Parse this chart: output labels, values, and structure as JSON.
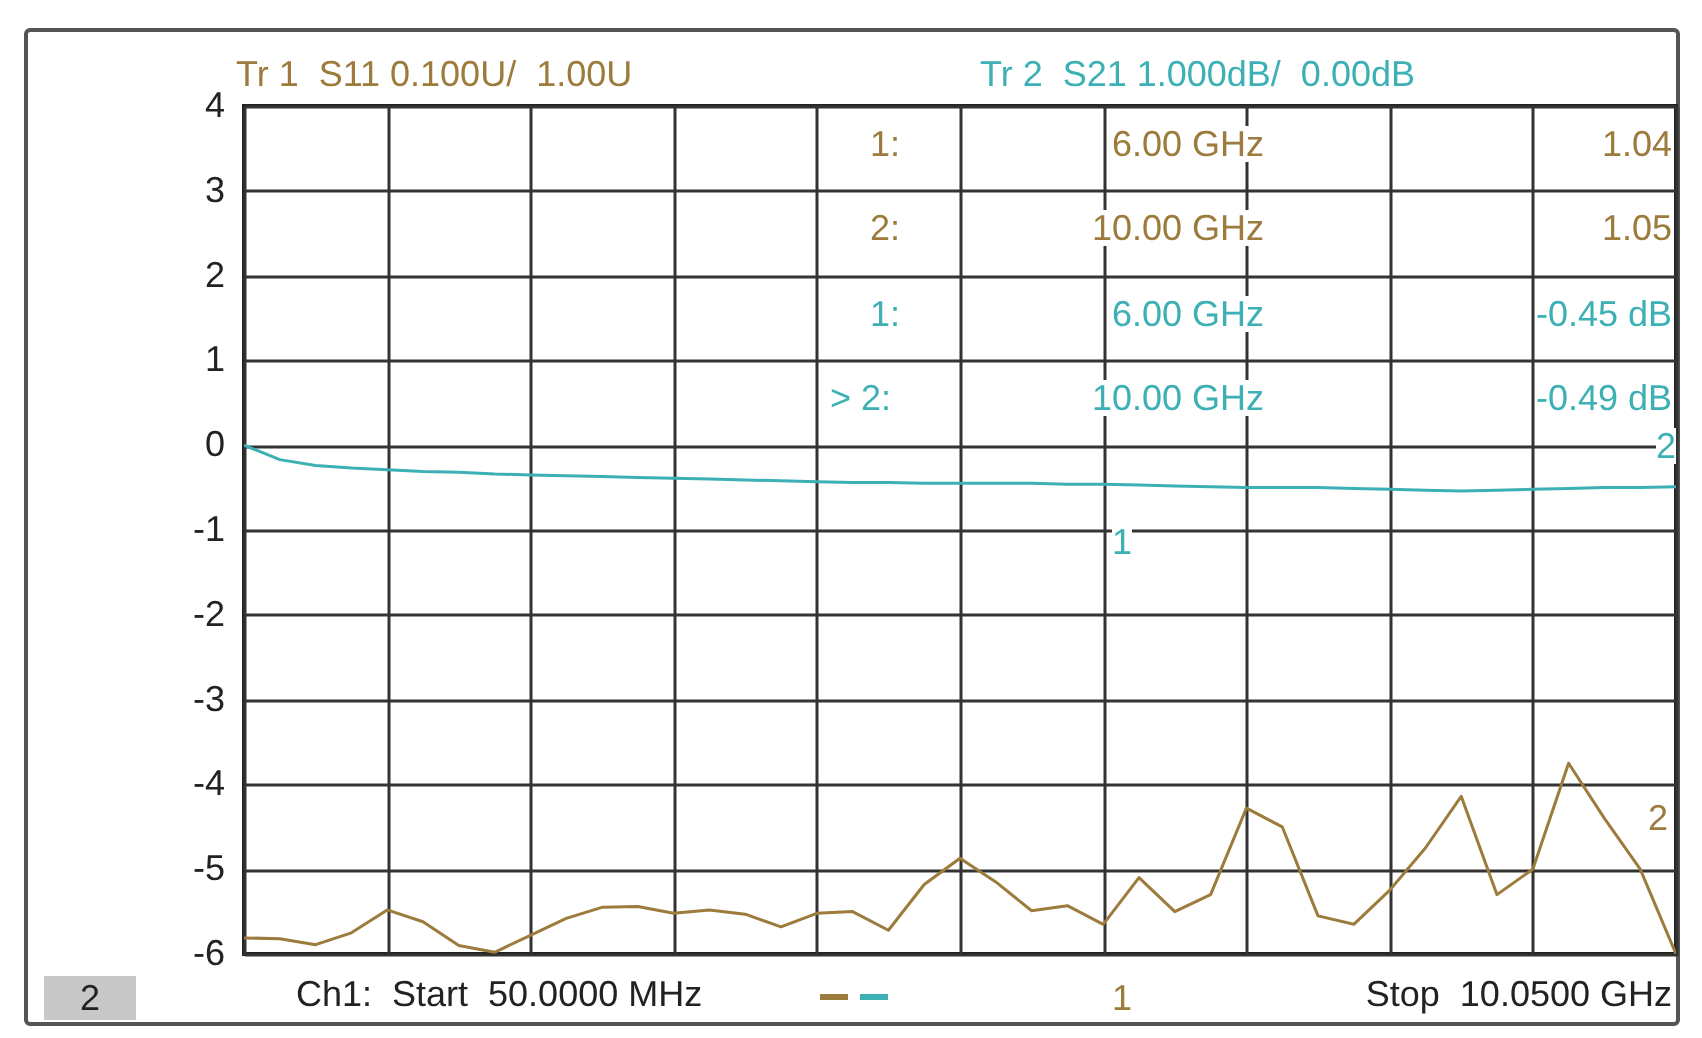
{
  "chart_data": {
    "type": "line",
    "categories": [
      null,
      null,
      null,
      null,
      null,
      null,
      null,
      null,
      null,
      null,
      null,
      null,
      null,
      null,
      null,
      null,
      null,
      null,
      null,
      null,
      null,
      null,
      null,
      null,
      null,
      null,
      null,
      null,
      null,
      null,
      null,
      null,
      null,
      null,
      null,
      null,
      null,
      null,
      null,
      null,
      null
    ],
    "series": [
      {
        "name": "Tr 1  S11 0.100U/  1.00U",
        "color": "#9c7b3c",
        "values": [
          -5.81,
          -5.82,
          -5.89,
          -5.75,
          -5.48,
          -5.62,
          -5.9,
          -5.98,
          -5.78,
          -5.58,
          -5.45,
          -5.44,
          -5.52,
          -5.48,
          -5.53,
          -5.68,
          -5.52,
          -5.5,
          -5.72,
          -5.18,
          -4.87,
          -5.15,
          -5.49,
          -5.43,
          -5.65,
          -5.1,
          -5.5,
          -5.3,
          -4.28,
          -4.5,
          -5.55,
          -5.65,
          -5.25,
          -4.75,
          -4.14,
          -5.3,
          -5.0,
          -3.75,
          -4.4,
          -5.0,
          -6.0
        ]
      },
      {
        "name": "Tr 2  S21 1.000dB/  0.00dB",
        "color": "#3cb0b4",
        "values": [
          0,
          -0.17,
          -0.24,
          -0.27,
          -0.29,
          -0.31,
          -0.32,
          -0.34,
          -0.35,
          -0.36,
          -0.37,
          -0.38,
          -0.39,
          -0.4,
          -0.41,
          -0.42,
          -0.43,
          -0.44,
          -0.44,
          -0.45,
          -0.45,
          -0.45,
          -0.45,
          -0.46,
          -0.46,
          -0.47,
          -0.48,
          -0.49,
          -0.5,
          -0.5,
          -0.5,
          -0.51,
          -0.52,
          -0.53,
          -0.54,
          -0.53,
          -0.52,
          -0.51,
          -0.5,
          -0.5,
          -0.49
        ]
      }
    ],
    "ylim": [
      -6,
      4
    ],
    "yticks": [
      -6,
      -5,
      -4,
      -3,
      -2,
      -1,
      0,
      1,
      2,
      3,
      4
    ],
    "tick_labels": "y",
    "grid": true,
    "legend": false,
    "annotations": [
      "1:",
      "6.00 GHz",
      "1.04",
      "2:",
      "10.00 GHz",
      "1.05",
      "1:",
      "6.00 GHz",
      "-0.45 dB",
      "> 2:",
      "10.00 GHz",
      "-0.49 dB",
      "1",
      "2",
      "1",
      "2",
      "2",
      "Ch1:  Start  50.0000 MHz",
      "Stop  10.0500 GHz"
    ]
  }
}
